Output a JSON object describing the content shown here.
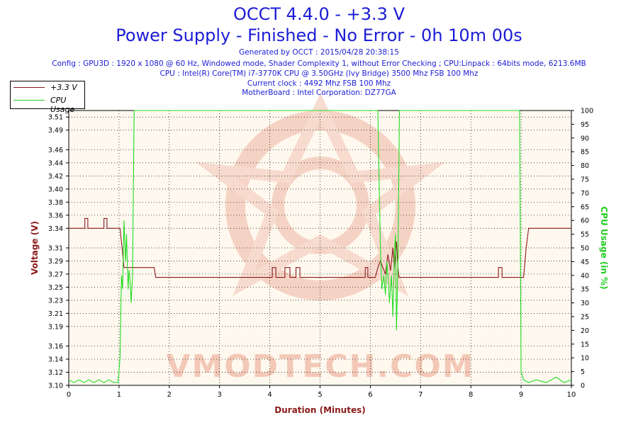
{
  "header": {
    "title": "OCCT 4.4.0 - +3.3 V",
    "subtitle": "Power Supply - Finished - No Error - 0h 10m 00s",
    "info_lines": [
      "Generated by OCCT : 2015/04/28 20:38:15",
      "Config : GPU3D : 1920 x 1080 @ 60 Hz, Windowed mode, Shader Complexity 1, without Error Checking ; CPU:Linpack : 64bits mode, 6213.6MB",
      "CPU : Intel(R) Core(TM) i7-3770K CPU @ 3.50GHz (Ivy Bridge) 3500 Mhz FSB 100 Mhz",
      "Current clock : 4492 Mhz FSB 100 Mhz",
      "MotherBoard : Intel Corporation: DZ77GA"
    ]
  },
  "legend": {
    "items": [
      {
        "label": "+3.3 V",
        "color": "#8b1a1a"
      },
      {
        "label": "CPU Usage",
        "color": "#22cc22"
      }
    ]
  },
  "watermark": {
    "text": "VMODTECH.COM",
    "color": "#f2c0ae"
  },
  "colors": {
    "voltage": "#8b1a1a",
    "cpu": "#22dd22",
    "plot_bg": "#fff8ee",
    "axis_left": "#8b1a1a",
    "axis_right": "#22cc22"
  },
  "chart_data": {
    "type": "line",
    "xlabel": "Duration (Minutes)",
    "ylabel": "Voltage (V)",
    "y2label": "CPU Usage (in %)",
    "xlim": [
      0,
      10
    ],
    "ylim": [
      3.1,
      3.52
    ],
    "y2lim": [
      0,
      100
    ],
    "x_ticks": [
      "0",
      "1",
      "2",
      "3",
      "4",
      "5",
      "6",
      "7",
      "8",
      "9",
      "10"
    ],
    "y_ticks": [
      "3.10",
      "3.12",
      "3.14",
      "3.16",
      "3.19",
      "3.21",
      "3.23",
      "3.25",
      "3.27",
      "3.29",
      "3.31",
      "3.34",
      "3.36",
      "3.38",
      "3.40",
      "3.42",
      "3.44",
      "3.46",
      "3.49",
      "3.51"
    ],
    "y2_ticks": [
      "0",
      "5",
      "10",
      "15",
      "20",
      "25",
      "30",
      "35",
      "40",
      "45",
      "50",
      "55",
      "60",
      "65",
      "70",
      "75",
      "80",
      "85",
      "90",
      "95",
      "100"
    ],
    "grid": true,
    "series": [
      {
        "name": "+3.3 V",
        "axis": "left",
        "points": [
          [
            0,
            3.34
          ],
          [
            0.32,
            3.34
          ],
          [
            0.32,
            3.355
          ],
          [
            0.38,
            3.355
          ],
          [
            0.38,
            3.34
          ],
          [
            0.7,
            3.34
          ],
          [
            0.7,
            3.355
          ],
          [
            0.76,
            3.355
          ],
          [
            0.76,
            3.34
          ],
          [
            1.02,
            3.34
          ],
          [
            1.06,
            3.31
          ],
          [
            1.1,
            3.28
          ],
          [
            1.3,
            3.28
          ],
          [
            1.7,
            3.28
          ],
          [
            1.73,
            3.265
          ],
          [
            4.05,
            3.265
          ],
          [
            4.05,
            3.28
          ],
          [
            4.12,
            3.28
          ],
          [
            4.12,
            3.265
          ],
          [
            4.3,
            3.265
          ],
          [
            4.3,
            3.28
          ],
          [
            4.4,
            3.28
          ],
          [
            4.4,
            3.265
          ],
          [
            4.52,
            3.265
          ],
          [
            4.52,
            3.28
          ],
          [
            4.6,
            3.28
          ],
          [
            4.6,
            3.265
          ],
          [
            5.9,
            3.265
          ],
          [
            5.9,
            3.28
          ],
          [
            5.95,
            3.28
          ],
          [
            5.95,
            3.265
          ],
          [
            6.1,
            3.265
          ],
          [
            6.15,
            3.28
          ],
          [
            6.2,
            3.29
          ],
          [
            6.25,
            3.28
          ],
          [
            6.3,
            3.27
          ],
          [
            6.35,
            3.3
          ],
          [
            6.4,
            3.275
          ],
          [
            6.45,
            3.31
          ],
          [
            6.48,
            3.28
          ],
          [
            6.52,
            3.32
          ],
          [
            6.55,
            3.28
          ],
          [
            6.57,
            3.265
          ],
          [
            8.55,
            3.265
          ],
          [
            8.55,
            3.28
          ],
          [
            8.62,
            3.28
          ],
          [
            8.62,
            3.265
          ],
          [
            9.05,
            3.265
          ],
          [
            9.1,
            3.31
          ],
          [
            9.15,
            3.34
          ],
          [
            10,
            3.34
          ]
        ]
      },
      {
        "name": "CPU Usage",
        "axis": "right",
        "points": [
          [
            0,
            2
          ],
          [
            0.1,
            1
          ],
          [
            0.2,
            2
          ],
          [
            0.3,
            1
          ],
          [
            0.4,
            2
          ],
          [
            0.5,
            1
          ],
          [
            0.6,
            2
          ],
          [
            0.7,
            1
          ],
          [
            0.8,
            2
          ],
          [
            0.9,
            1
          ],
          [
            0.98,
            1
          ],
          [
            1.02,
            10
          ],
          [
            1.05,
            40
          ],
          [
            1.07,
            35
          ],
          [
            1.1,
            60
          ],
          [
            1.13,
            45
          ],
          [
            1.15,
            55
          ],
          [
            1.18,
            35
          ],
          [
            1.2,
            42
          ],
          [
            1.22,
            38
          ],
          [
            1.24,
            30
          ],
          [
            1.27,
            40
          ],
          [
            1.3,
            100
          ],
          [
            6.15,
            100
          ],
          [
            6.2,
            50
          ],
          [
            6.23,
            35
          ],
          [
            6.27,
            40
          ],
          [
            6.3,
            33
          ],
          [
            6.33,
            45
          ],
          [
            6.36,
            38
          ],
          [
            6.38,
            30
          ],
          [
            6.42,
            40
          ],
          [
            6.45,
            25
          ],
          [
            6.48,
            48
          ],
          [
            6.5,
            55
          ],
          [
            6.52,
            20
          ],
          [
            6.55,
            45
          ],
          [
            6.58,
            100
          ],
          [
            8.97,
            100
          ],
          [
            9.0,
            5
          ],
          [
            9.05,
            2
          ],
          [
            9.15,
            1
          ],
          [
            9.3,
            2
          ],
          [
            9.5,
            1
          ],
          [
            9.7,
            3
          ],
          [
            9.85,
            1
          ],
          [
            10,
            2
          ]
        ]
      }
    ]
  }
}
